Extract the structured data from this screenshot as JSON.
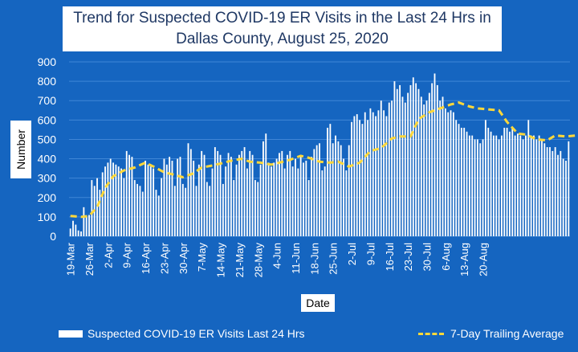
{
  "title": {
    "line1": "Trend for Suspected COVID-19 ER Visits in the Last 24 Hrs in",
    "line2": "Dallas County, August 25, 2020"
  },
  "colors": {
    "background": "#1565C0",
    "bars": "#ffffff",
    "trend_line": "#ffd83a",
    "grid": "#3f86d6"
  },
  "chart_data": {
    "type": "bar",
    "title": "Trend for Suspected COVID-19 ER Visits in the Last 24 Hrs in Dallas County, August 25, 2020",
    "xlabel": "Date",
    "ylabel": "Number",
    "ylim": [
      0,
      900
    ],
    "yticks": [
      0,
      100,
      200,
      300,
      400,
      500,
      600,
      700,
      800,
      900
    ],
    "grid": "horizontal",
    "legend_position": "bottom",
    "x_start": "2020-03-19",
    "x_tick_labels": [
      "19-Mar",
      "26-Mar",
      "2-Apr",
      "9-Apr",
      "16-Apr",
      "23-Apr",
      "30-Apr",
      "7-May",
      "14-May",
      "21-May",
      "28-May",
      "4-Jun",
      "11-Jun",
      "18-Jun",
      "25-Jun",
      "2-Jul",
      "9-Jul",
      "16-Jul",
      "23-Jul",
      "30-Jul",
      "6-Aug",
      "13-Aug",
      "20-Aug"
    ],
    "series": [
      {
        "name": "Suspected COVID-19 ER Visits Last 24 Hrs",
        "type": "bar",
        "values": [
          40,
          80,
          60,
          30,
          25,
          150,
          100,
          110,
          290,
          260,
          300,
          240,
          330,
          360,
          380,
          400,
          380,
          370,
          360,
          350,
          300,
          440,
          420,
          410,
          290,
          270,
          260,
          230,
          390,
          370,
          360,
          350,
          240,
          210,
          300,
          400,
          370,
          410,
          390,
          260,
          400,
          410,
          270,
          250,
          480,
          450,
          390,
          260,
          370,
          440,
          420,
          280,
          260,
          350,
          460,
          440,
          420,
          270,
          360,
          430,
          410,
          290,
          370,
          420,
          440,
          460,
          350,
          440,
          420,
          290,
          280,
          370,
          490,
          530,
          380,
          360,
          380,
          400,
          430,
          440,
          350,
          420,
          440,
          360,
          400,
          350,
          420,
          380,
          390,
          290,
          410,
          450,
          470,
          480,
          340,
          360,
          560,
          580,
          480,
          520,
          490,
          470,
          400,
          340,
          470,
          590,
          620,
          630,
          600,
          580,
          640,
          600,
          660,
          640,
          620,
          650,
          700,
          650,
          620,
          690,
          700,
          800,
          760,
          780,
          720,
          690,
          740,
          780,
          820,
          790,
          760,
          720,
          680,
          700,
          740,
          790,
          840,
          780,
          700,
          720,
          660,
          640,
          650,
          640,
          600,
          580,
          560,
          560,
          540,
          520,
          520,
          500,
          500,
          480,
          500,
          600,
          560,
          540,
          520,
          520,
          500,
          520,
          560,
          560,
          540,
          560,
          520,
          530,
          520,
          500,
          520,
          600,
          520,
          520,
          500,
          520,
          500,
          480,
          460,
          460,
          440,
          460,
          420,
          440,
          400,
          390,
          490
        ]
      },
      {
        "name": "7-Day Trailing Average",
        "type": "line",
        "points": [
          [
            0,
            105
          ],
          [
            4,
            100
          ],
          [
            7,
            105
          ],
          [
            10,
            150
          ],
          [
            13,
            250
          ],
          [
            16,
            310
          ],
          [
            20,
            340
          ],
          [
            24,
            355
          ],
          [
            28,
            380
          ],
          [
            31,
            360
          ],
          [
            35,
            330
          ],
          [
            38,
            320
          ],
          [
            42,
            305
          ],
          [
            46,
            325
          ],
          [
            49,
            355
          ],
          [
            53,
            365
          ],
          [
            56,
            375
          ],
          [
            60,
            390
          ],
          [
            64,
            400
          ],
          [
            67,
            385
          ],
          [
            71,
            380
          ],
          [
            75,
            370
          ],
          [
            78,
            380
          ],
          [
            82,
            395
          ],
          [
            86,
            415
          ],
          [
            89,
            405
          ],
          [
            93,
            385
          ],
          [
            97,
            380
          ],
          [
            100,
            385
          ],
          [
            104,
            360
          ],
          [
            108,
            380
          ],
          [
            112,
            440
          ],
          [
            116,
            455
          ],
          [
            120,
            505
          ],
          [
            123,
            515
          ],
          [
            127,
            515
          ],
          [
            130,
            605
          ],
          [
            134,
            640
          ],
          [
            138,
            660
          ],
          [
            142,
            680
          ],
          [
            145,
            690
          ],
          [
            149,
            670
          ],
          [
            152,
            660
          ],
          [
            156,
            655
          ],
          [
            160,
            650
          ],
          [
            163,
            590
          ],
          [
            167,
            530
          ],
          [
            170,
            525
          ],
          [
            174,
            500
          ],
          [
            178,
            495
          ],
          [
            181,
            520
          ],
          [
            185,
            515
          ],
          [
            189,
            520
          ],
          [
            193,
            525
          ],
          [
            196,
            510
          ],
          [
            200,
            505
          ],
          [
            204,
            490
          ],
          [
            208,
            470
          ],
          [
            212,
            450
          ],
          [
            214,
            445
          ]
        ]
      }
    ]
  },
  "legend": {
    "bars_label": "Suspected COVID-19 ER Visits Last 24 Hrs",
    "line_label": "7-Day Trailing Average"
  }
}
